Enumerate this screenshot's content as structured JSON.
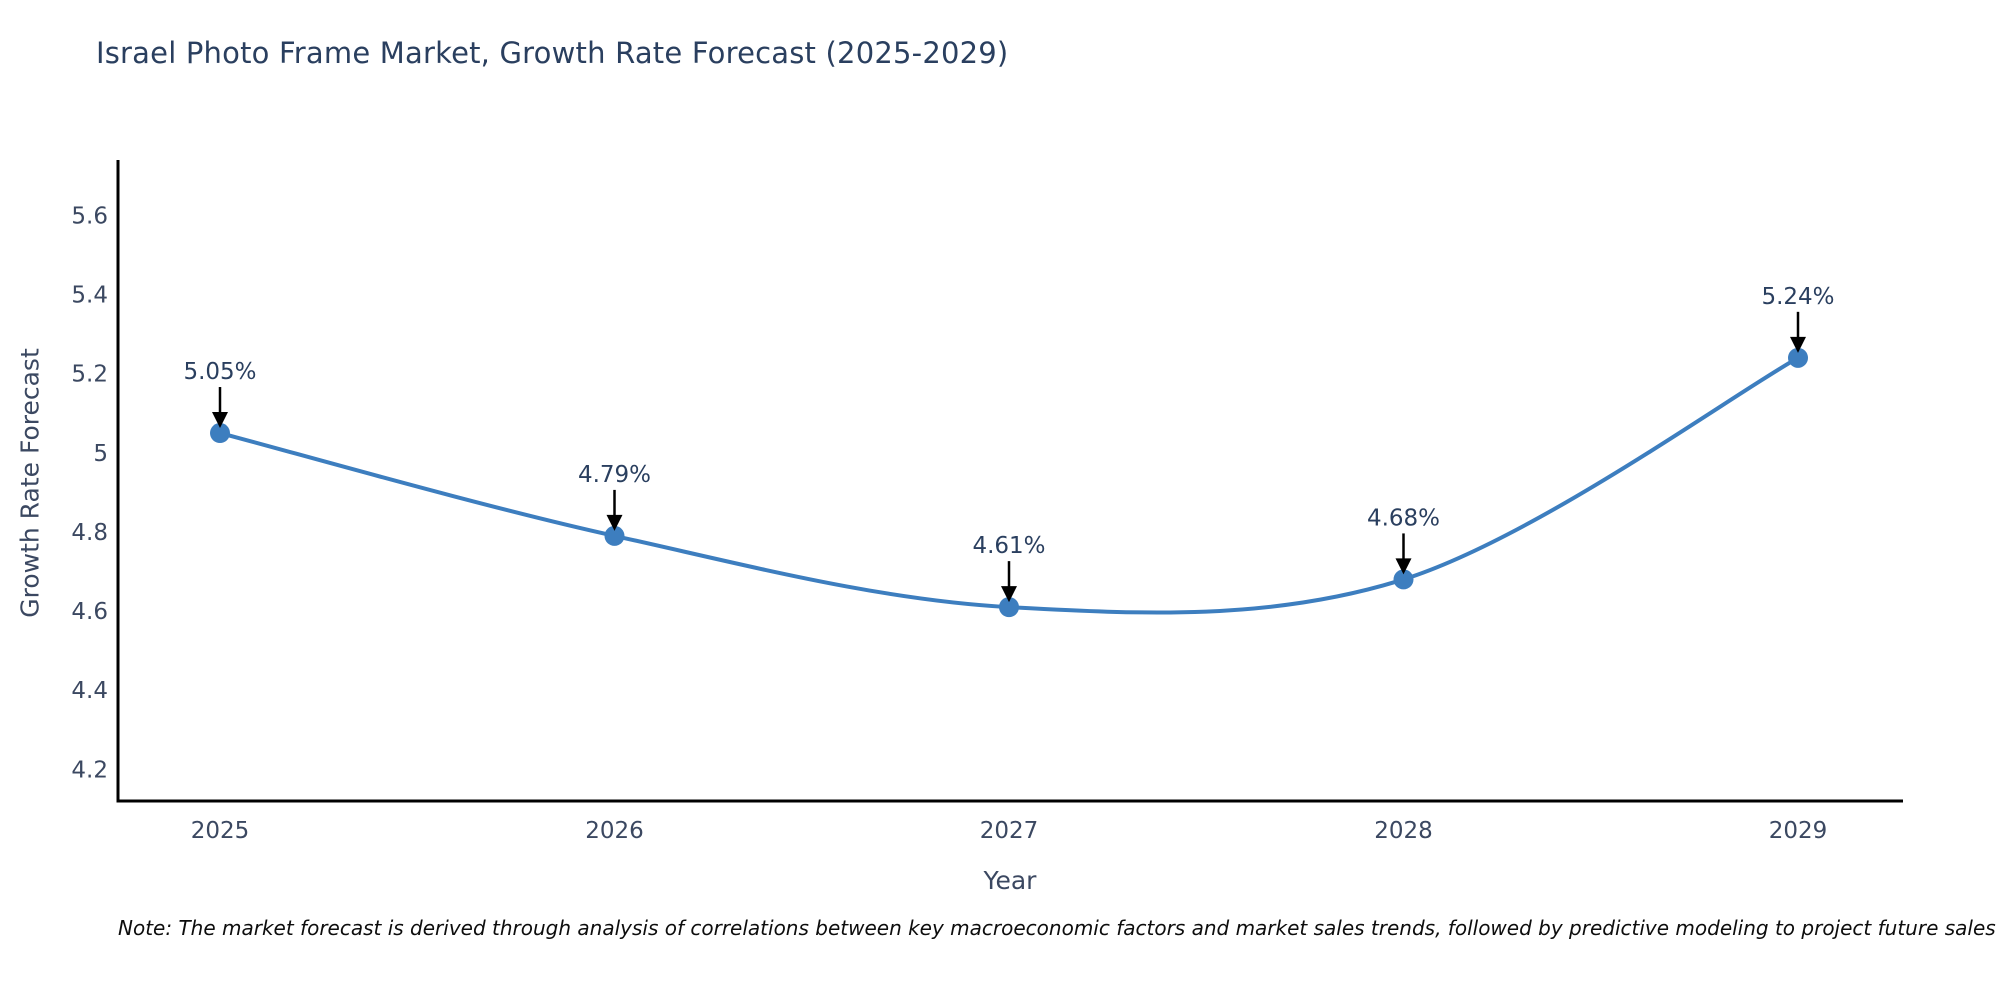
{
  "note": "Note: The market forecast is derived through analysis of correlations between key macroeconomic factors and market sales trends, followed by predictive modeling to project future sales",
  "colors": {
    "line": "#3d7ebf",
    "marker": "#3d7ebf",
    "axis": "#000000",
    "tick_label": "#3b4861",
    "title": "#2a3f5f",
    "annotation_text": "#2a3f5f",
    "arrow": "#000000",
    "background": "#ffffff"
  },
  "chart_data": {
    "type": "line",
    "title": "Israel Photo Frame Market, Growth Rate Forecast (2025-2029)",
    "xlabel": "Year",
    "ylabel": "Growth Rate Forecast",
    "x": [
      2025,
      2026,
      2027,
      2028,
      2029
    ],
    "categories": [
      "2025",
      "2026",
      "2027",
      "2028",
      "2029"
    ],
    "series": [
      {
        "name": "Growth Rate Forecast",
        "values": [
          5.05,
          4.79,
          4.61,
          4.68,
          5.24
        ],
        "point_labels": [
          "5.05%",
          "4.79%",
          "4.61%",
          "4.68%",
          "5.24%"
        ]
      }
    ],
    "yticks": [
      4.2,
      4.4,
      4.6,
      4.8,
      5,
      5.2,
      5.4,
      5.6
    ],
    "ylim": [
      4.12,
      5.74
    ],
    "grid": false,
    "legend": false,
    "line_shape": "spline",
    "annotations": "black arrows pointing from each percentage label down to its data point"
  }
}
